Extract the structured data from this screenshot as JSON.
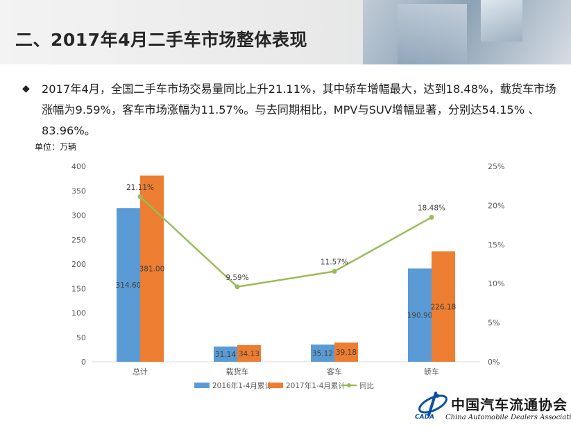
{
  "header": {
    "title": "二、2017年4月二手车市场整体表现"
  },
  "bullet": {
    "mark": "◆",
    "text": "2017年4月，全国二手车市场交易量同比上升21.11%，其中轿车增幅最大，达到18.48%，载货车市场涨幅为9.59%，客车市场涨幅为11.57%。与去同期相比，MPV与SUV增幅显著，分别达54.15% 、83.96%。"
  },
  "unit_label": "单位：万辆",
  "logo": {
    "abbr": "CADA",
    "name_cn": "中国汽车流通协会",
    "name_en": "China Automobile Dealers Association"
  },
  "chart_data": {
    "type": "bar",
    "categories": [
      "总计",
      "载货车",
      "客车",
      "轿车"
    ],
    "series": [
      {
        "name": "2016年1-4月累计",
        "type": "bar",
        "axis": "left",
        "color": "#5b9bd5",
        "values": [
          314.6,
          31.14,
          35.12,
          190.9
        ],
        "labels": [
          "314.60",
          "31.14",
          "35.12",
          "190.90"
        ]
      },
      {
        "name": "2017年1-4月累计",
        "type": "bar",
        "axis": "left",
        "color": "#ed7d31",
        "values": [
          381.0,
          34.13,
          39.18,
          226.18
        ],
        "labels": [
          "381.00",
          "34.13",
          "39.18",
          "226.18"
        ]
      },
      {
        "name": "同比",
        "type": "line",
        "axis": "right",
        "color": "#9bbb59",
        "values": [
          21.11,
          9.59,
          11.57,
          18.48
        ],
        "labels": [
          "21.11%",
          "9.59%",
          "11.57%",
          "18.48%"
        ]
      }
    ],
    "left_axis": {
      "min": 0,
      "max": 400,
      "ticks": [
        "0",
        "50",
        "100",
        "150",
        "200",
        "250",
        "300",
        "350",
        "400"
      ]
    },
    "right_axis": {
      "min": 0,
      "max": 25,
      "ticks": [
        "0%",
        "5%",
        "10%",
        "15%",
        "20%",
        "25%"
      ]
    },
    "legend_position": "bottom",
    "grid": false
  }
}
